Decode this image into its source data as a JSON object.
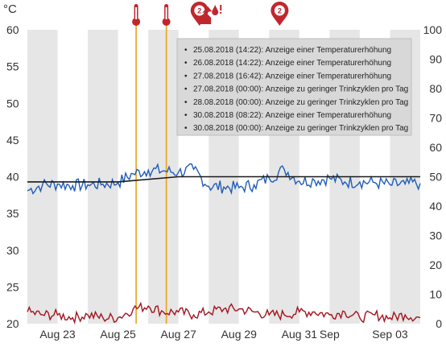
{
  "chart_data": {
    "type": "line",
    "unit_left": "°C",
    "y_left": {
      "ticks": [
        20,
        25,
        30,
        35,
        40,
        45,
        50,
        55,
        60
      ],
      "range": [
        20,
        60
      ]
    },
    "y_right": {
      "ticks": [
        0,
        10,
        20,
        30,
        40,
        50,
        60,
        70,
        80,
        90,
        100
      ],
      "range": [
        0,
        100
      ]
    },
    "x_axis": {
      "start": "2018-08-22",
      "end": "2018-09-04",
      "tick_labels": [
        {
          "date": "2018-08-23",
          "label": "Aug 23"
        },
        {
          "date": "2018-08-25",
          "label": "Aug 25"
        },
        {
          "date": "2018-08-27",
          "label": "Aug 27"
        },
        {
          "date": "2018-08-29",
          "label": "Aug 29"
        },
        {
          "date": "2018-08-31",
          "label": "Aug 31"
        },
        {
          "date": "2018-09-01",
          "label": "Sep"
        },
        {
          "date": "2018-09-03",
          "label": "Sep 03"
        }
      ]
    },
    "background_bands": "alternating grey/white daily stripes",
    "series": [
      {
        "axis": "left",
        "color": "#1f5db7",
        "points": [
          [
            "2018-08-22T00:00",
            38.1
          ],
          [
            "2018-08-22T12:00",
            38.9
          ],
          [
            "2018-08-23T00:00",
            39.0
          ],
          [
            "2018-08-23T12:00",
            38.8
          ],
          [
            "2018-08-24T00:00",
            38.9
          ],
          [
            "2018-08-24T12:00",
            39.0
          ],
          [
            "2018-08-25T00:00",
            39.2
          ],
          [
            "2018-08-25T12:00",
            40.4
          ],
          [
            "2018-08-26T00:00",
            40.9
          ],
          [
            "2018-08-26T12:00",
            40.8
          ],
          [
            "2018-08-27T00:00",
            40.6
          ],
          [
            "2018-08-27T12:00",
            41.0
          ],
          [
            "2018-08-28T00:00",
            38.7
          ],
          [
            "2018-08-28T12:00",
            38.6
          ],
          [
            "2018-08-29T00:00",
            38.5
          ],
          [
            "2018-08-29T12:00",
            38.9
          ],
          [
            "2018-08-30T00:00",
            39.8
          ],
          [
            "2018-08-30T12:00",
            41.0
          ],
          [
            "2018-08-31T00:00",
            39.4
          ],
          [
            "2018-08-31T12:00",
            39.5
          ],
          [
            "2018-09-01T00:00",
            39.8
          ],
          [
            "2018-09-01T12:00",
            39.3
          ],
          [
            "2018-09-02T00:00",
            39.3
          ],
          [
            "2018-09-02T12:00",
            39.2
          ],
          [
            "2018-09-03T00:00",
            38.9
          ],
          [
            "2018-09-03T12:00",
            39.0
          ],
          [
            "2018-09-04T00:00",
            39.1
          ]
        ]
      },
      {
        "axis": "left",
        "color": "#1a1a1a",
        "points": [
          [
            "2018-08-22T00:00",
            39.3
          ],
          [
            "2018-08-25T00:00",
            39.3
          ],
          [
            "2018-08-27T00:00",
            40.0
          ],
          [
            "2018-09-04T00:00",
            40.0
          ]
        ]
      },
      {
        "axis": "right",
        "color": "#a3141f",
        "points": [
          [
            "2018-08-22T00:00",
            4
          ],
          [
            "2018-08-22T12:00",
            3
          ],
          [
            "2018-08-23T00:00",
            3
          ],
          [
            "2018-08-23T12:00",
            2
          ],
          [
            "2018-08-24T00:00",
            3
          ],
          [
            "2018-08-24T12:00",
            2
          ],
          [
            "2018-08-25T00:00",
            2
          ],
          [
            "2018-08-25T12:00",
            5
          ],
          [
            "2018-08-26T00:00",
            6
          ],
          [
            "2018-08-26T12:00",
            4
          ],
          [
            "2018-08-27T00:00",
            4
          ],
          [
            "2018-08-27T12:00",
            3
          ],
          [
            "2018-08-28T00:00",
            4
          ],
          [
            "2018-08-28T12:00",
            5
          ],
          [
            "2018-08-29T00:00",
            5
          ],
          [
            "2018-08-29T12:00",
            4
          ],
          [
            "2018-08-30T00:00",
            3
          ],
          [
            "2018-08-30T12:00",
            3
          ],
          [
            "2018-08-31T00:00",
            4
          ],
          [
            "2018-08-31T12:00",
            4
          ],
          [
            "2018-09-01T00:00",
            3
          ],
          [
            "2018-09-01T12:00",
            4
          ],
          [
            "2018-09-02T00:00",
            2
          ],
          [
            "2018-09-02T12:00",
            3
          ],
          [
            "2018-09-03T00:00",
            2
          ],
          [
            "2018-09-03T12:00",
            3
          ],
          [
            "2018-09-04T00:00",
            2
          ]
        ]
      }
    ],
    "event_lines": [
      {
        "date": "2018-08-25T14:22",
        "color": "#e8a317"
      },
      {
        "date": "2018-08-26T14:22",
        "color": "#e8a317"
      }
    ],
    "markers": [
      {
        "date": "2018-08-25T14:22",
        "icon": "thermometer-icon",
        "color": "#c0272d"
      },
      {
        "date": "2018-08-26T14:22",
        "icon": "thermometer-icon",
        "color": "#c0272d"
      },
      {
        "date": "2018-08-27T16:42",
        "icon": "map-pin-icon",
        "count": "2",
        "color": "#c0272d"
      },
      {
        "date": "2018-08-28T00:00",
        "icon": "drink-alert-icon",
        "color": "#c0272d"
      },
      {
        "date": "2018-08-30T08:22",
        "icon": "map-pin-icon",
        "count": "2",
        "color": "#c0272d"
      }
    ],
    "legend": {
      "placement": "top-right",
      "bullet": "•",
      "items": [
        "25.08.2018 (14:22): Anzeige einer Temperaturerhöhung",
        "26.08.2018 (14:22): Anzeige einer Temperaturerhöhung",
        "27.08.2018 (16:42): Anzeige einer Temperaturerhöhung",
        "27.08.2018 (00:00): Anzeige zu geringer Trinkzyklen pro Tag",
        "28.08.2018 (00:00): Anzeige zu geringer Trinkzyklen pro Tag",
        "30.08.2018 (08:22): Anzeige einer Temperaturerhöhung",
        "30.08.2018 (00:00): Anzeige zu geringer Trinkzyklen pro Tag"
      ]
    }
  }
}
